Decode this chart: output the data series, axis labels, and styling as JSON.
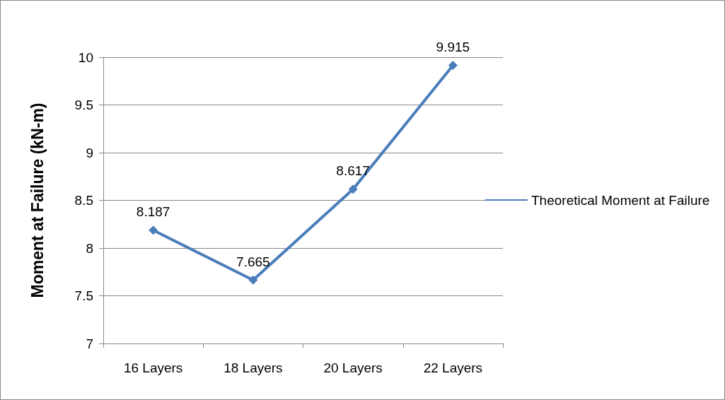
{
  "chart_data": {
    "type": "line",
    "ylabel": "Moment at Failure (kN-m)",
    "categories": [
      "16 Layers",
      "18 Layers",
      "20 Layers",
      "22 Layers"
    ],
    "series": [
      {
        "name": "Theoretical Moment at Failure",
        "color": "#4a7ebb",
        "values": [
          8.187,
          7.665,
          8.617,
          9.915
        ]
      }
    ],
    "ylim": [
      7,
      10
    ],
    "yticks": [
      7,
      7.5,
      8,
      8.5,
      9,
      9.5,
      10
    ],
    "grid": "y",
    "legend": "right",
    "marker": "diamond",
    "line_style": "solid",
    "data_labels": true
  }
}
